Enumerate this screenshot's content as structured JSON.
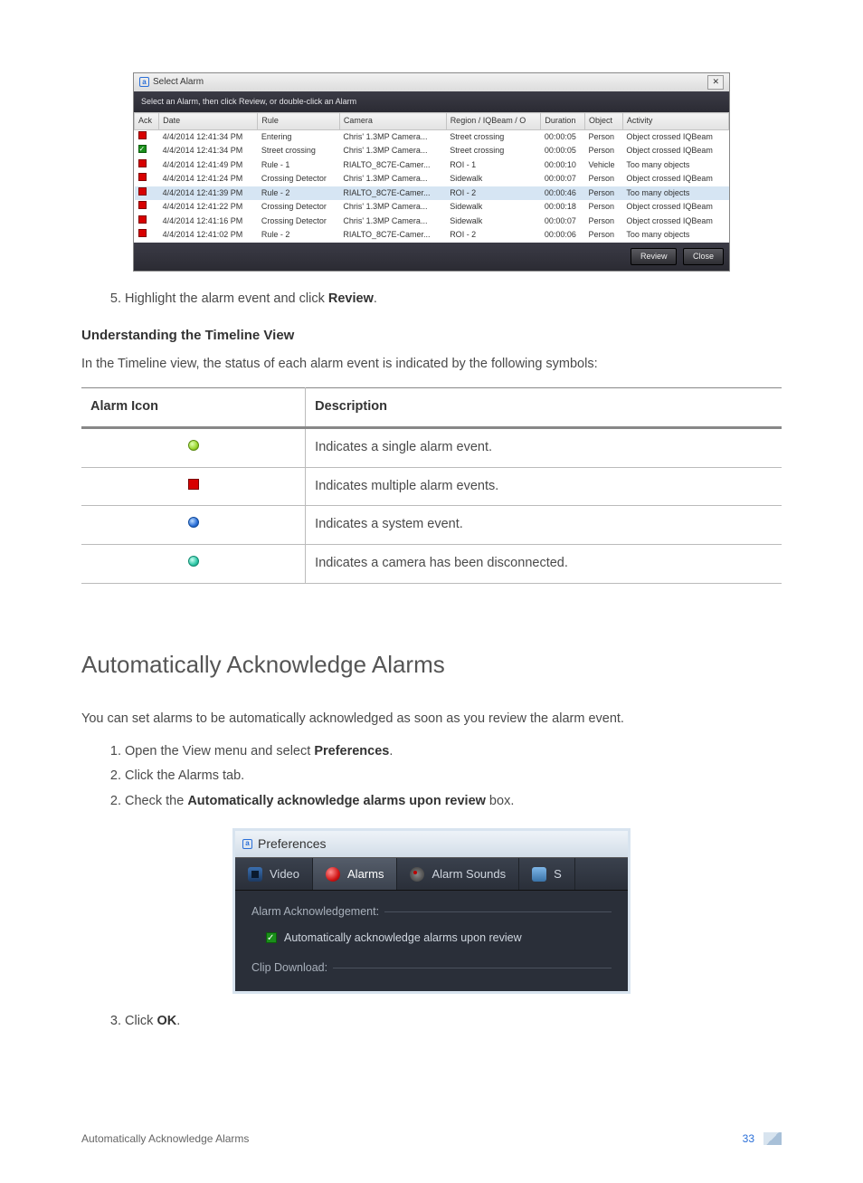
{
  "alarm_dialog": {
    "title": "Select Alarm",
    "instruction": "Select an Alarm, then click Review, or double-click an Alarm",
    "columns": [
      "Ack",
      "Date",
      "Rule",
      "Camera",
      "Region / IQBeam / O",
      "Duration",
      "Object",
      "Activity"
    ],
    "rows": [
      {
        "ack": "red",
        "date": "4/4/2014 12:41:34 PM",
        "rule": "Entering",
        "camera": "Chris' 1.3MP Camera...",
        "region": "Street crossing",
        "duration": "00:00:05",
        "object": "Person",
        "activity": "Object crossed IQBeam",
        "sel": false
      },
      {
        "ack": "green",
        "date": "4/4/2014 12:41:34 PM",
        "rule": "Street crossing",
        "camera": "Chris' 1.3MP Camera...",
        "region": "Street crossing",
        "duration": "00:00:05",
        "object": "Person",
        "activity": "Object crossed IQBeam",
        "sel": false
      },
      {
        "ack": "red",
        "date": "4/4/2014 12:41:49 PM",
        "rule": "Rule - 1",
        "camera": "RIALTO_8C7E-Camer...",
        "region": "ROI - 1",
        "duration": "00:00:10",
        "object": "Vehicle",
        "activity": "Too many objects",
        "sel": false
      },
      {
        "ack": "red",
        "date": "4/4/2014 12:41:24 PM",
        "rule": "Crossing Detector",
        "camera": "Chris' 1.3MP Camera...",
        "region": "Sidewalk",
        "duration": "00:00:07",
        "object": "Person",
        "activity": "Object crossed IQBeam",
        "sel": false
      },
      {
        "ack": "red",
        "date": "4/4/2014 12:41:39 PM",
        "rule": "Rule - 2",
        "camera": "RIALTO_8C7E-Camer...",
        "region": "ROI - 2",
        "duration": "00:00:46",
        "object": "Person",
        "activity": "Too many objects",
        "sel": true
      },
      {
        "ack": "red",
        "date": "4/4/2014 12:41:22 PM",
        "rule": "Crossing Detector",
        "camera": "Chris' 1.3MP Camera...",
        "region": "Sidewalk",
        "duration": "00:00:18",
        "object": "Person",
        "activity": "Object crossed IQBeam",
        "sel": false
      },
      {
        "ack": "red",
        "date": "4/4/2014 12:41:16 PM",
        "rule": "Crossing Detector",
        "camera": "Chris' 1.3MP Camera...",
        "region": "Sidewalk",
        "duration": "00:00:07",
        "object": "Person",
        "activity": "Object crossed IQBeam",
        "sel": false
      },
      {
        "ack": "red",
        "date": "4/4/2014 12:41:02 PM",
        "rule": "Rule - 2",
        "camera": "RIALTO_8C7E-Camer...",
        "region": "ROI - 2",
        "duration": "00:00:06",
        "object": "Person",
        "activity": "Too many objects",
        "sel": false
      }
    ],
    "buttons": {
      "review": "Review",
      "close": "Close"
    }
  },
  "step5_pre": "Highlight the alarm event and click ",
  "step5_bold": "Review",
  "step5_post": ".",
  "subheading": "Understanding the Timeline View",
  "timeline_para": "In the Timeline view, the status of each alarm event is indicated by the following symbols:",
  "icon_table": {
    "head": {
      "c1": "Alarm Icon",
      "c2": "Description"
    },
    "rows": [
      {
        "icon": "green-circle",
        "desc": "Indicates a single alarm event."
      },
      {
        "icon": "red-square",
        "desc": "Indicates multiple alarm events."
      },
      {
        "icon": "blue-circle",
        "desc": "Indicates a system event."
      },
      {
        "icon": "teal-circle",
        "desc": "Indicates a camera has been disconnected."
      }
    ]
  },
  "section_title": "Automatically Acknowledge Alarms",
  "section_para": "You can set alarms to be automatically acknowledged as soon as you review the alarm event.",
  "steps": {
    "s1_pre": "Open the View menu and select ",
    "s1_bold": "Preferences",
    "s1_post": ".",
    "s2": "Click the Alarms tab.",
    "s3_pre": "Check the ",
    "s3_bold": "Automatically acknowledge alarms upon review",
    "s3_post": " box.",
    "s4_pre": "Click ",
    "s4_bold": "OK",
    "s4_post": "."
  },
  "prefs": {
    "title": "Preferences",
    "tabs": {
      "video": "Video",
      "alarms": "Alarms",
      "sounds": "Alarm Sounds",
      "s": "S"
    },
    "fs1": "Alarm Acknowledgement:",
    "chk_label": "Automatically acknowledge alarms upon review",
    "fs2": "Clip Download:"
  },
  "footer": {
    "left": "Automatically Acknowledge Alarms",
    "page": "33"
  }
}
